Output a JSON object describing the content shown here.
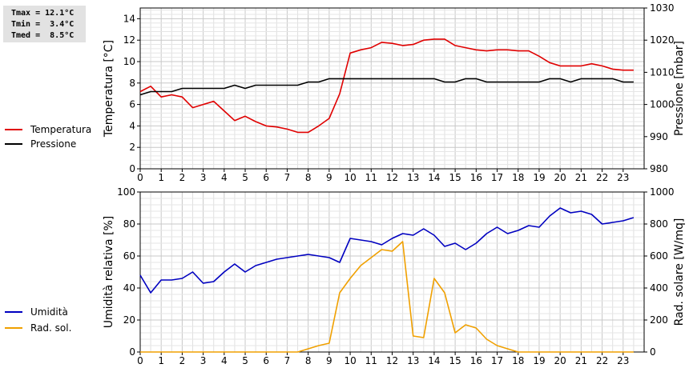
{
  "stats": {
    "tmax": "Tmax = 12.1°C",
    "tmin": "Tmin =  3.4°C",
    "tmed": "Tmed =  8.5°C"
  },
  "chart_data": [
    {
      "type": "line",
      "x_ticks": [
        "0",
        "1",
        "2",
        "3",
        "4",
        "5",
        "6",
        "7",
        "8",
        "9",
        "10",
        "11",
        "12",
        "13",
        "14",
        "15",
        "16",
        "17",
        "18",
        "19",
        "20",
        "21",
        "22",
        "23"
      ],
      "xlim": [
        0,
        24
      ],
      "ylabel_left": "Temperatura [°C]",
      "ylim_left": [
        0,
        15
      ],
      "yticks_left": [
        "0",
        "2",
        "4",
        "6",
        "8",
        "10",
        "12",
        "14"
      ],
      "ylabel_right": "Pressione [mbar]",
      "ylim_right": [
        980,
        1030
      ],
      "yticks_right": [
        "980",
        "990",
        "1000",
        "1010",
        "1020",
        "1030"
      ],
      "grid": true,
      "series": [
        {
          "name": "Temperatura",
          "axis": "left",
          "color": "#e00000",
          "x": [
            0,
            0.5,
            1,
            1.5,
            2,
            2.5,
            3,
            3.5,
            4,
            4.5,
            5,
            5.5,
            6,
            6.5,
            7,
            7.5,
            8,
            8.5,
            9,
            9.5,
            10,
            10.5,
            11,
            11.5,
            12,
            12.5,
            13,
            13.5,
            14,
            14.5,
            15,
            15.5,
            16,
            16.5,
            17,
            17.5,
            18,
            18.5,
            19,
            19.5,
            20,
            20.5,
            21,
            21.5,
            22,
            22.5,
            23,
            23.5
          ],
          "y": [
            7.2,
            7.7,
            6.7,
            6.9,
            6.7,
            5.7,
            6.0,
            6.3,
            5.4,
            4.5,
            4.9,
            4.4,
            4.0,
            3.9,
            3.7,
            3.4,
            3.4,
            4.0,
            4.7,
            7.0,
            10.8,
            11.1,
            11.3,
            11.8,
            11.7,
            11.5,
            11.6,
            12.0,
            12.1,
            12.1,
            11.5,
            11.3,
            11.1,
            11.0,
            11.1,
            11.1,
            11.0,
            11.0,
            10.5,
            9.9,
            9.6,
            9.6,
            9.6,
            9.8,
            9.6,
            9.3,
            9.2,
            9.2
          ]
        },
        {
          "name": "Pressione",
          "axis": "right",
          "color": "#000000",
          "x": [
            0,
            0.5,
            1,
            1.5,
            2,
            2.5,
            3,
            3.5,
            4,
            4.5,
            5,
            5.5,
            6,
            6.5,
            7,
            7.5,
            8,
            8.5,
            9,
            9.5,
            10,
            10.5,
            11,
            11.5,
            12,
            12.5,
            13,
            13.5,
            14,
            14.5,
            15,
            15.5,
            16,
            16.5,
            17,
            17.5,
            18,
            18.5,
            19,
            19.5,
            20,
            20.5,
            21,
            21.5,
            22,
            22.5,
            23,
            23.5
          ],
          "y": [
            1003,
            1004,
            1004,
            1004,
            1005,
            1005,
            1005,
            1005,
            1005,
            1006,
            1005,
            1006,
            1006,
            1006,
            1006,
            1006,
            1007,
            1007,
            1008,
            1008,
            1008,
            1008,
            1008,
            1008,
            1008,
            1008,
            1008,
            1008,
            1008,
            1007,
            1007,
            1008,
            1008,
            1007,
            1007,
            1007,
            1007,
            1007,
            1007,
            1008,
            1008,
            1007,
            1008,
            1008,
            1008,
            1008,
            1007,
            1007
          ]
        }
      ]
    },
    {
      "type": "line",
      "x_ticks": [
        "0",
        "1",
        "2",
        "3",
        "4",
        "5",
        "6",
        "7",
        "8",
        "9",
        "10",
        "11",
        "12",
        "13",
        "14",
        "15",
        "16",
        "17",
        "18",
        "19",
        "20",
        "21",
        "22",
        "23"
      ],
      "xlim": [
        0,
        24
      ],
      "ylabel_left": "Umidità relativa [%]",
      "ylim_left": [
        0,
        100
      ],
      "yticks_left": [
        "0",
        "20",
        "40",
        "60",
        "80",
        "100"
      ],
      "ylabel_right": "Rad. solare [W/mq]",
      "ylim_right": [
        0,
        1000
      ],
      "yticks_right": [
        "0",
        "200",
        "400",
        "600",
        "800",
        "1000"
      ],
      "grid": true,
      "series": [
        {
          "name": "Umidità",
          "axis": "left",
          "color": "#0000c0",
          "x": [
            0,
            0.5,
            1,
            1.5,
            2,
            2.5,
            3,
            3.5,
            4,
            4.5,
            5,
            5.5,
            6,
            6.5,
            7,
            7.5,
            8,
            8.5,
            9,
            9.5,
            10,
            10.5,
            11,
            11.5,
            12,
            12.5,
            13,
            13.5,
            14,
            14.5,
            15,
            15.5,
            16,
            16.5,
            17,
            17.5,
            18,
            18.5,
            19,
            19.5,
            20,
            20.5,
            21,
            21.5,
            22,
            22.5,
            23,
            23.5
          ],
          "y": [
            48,
            37,
            45,
            45,
            46,
            50,
            43,
            44,
            50,
            55,
            50,
            54,
            56,
            58,
            59,
            60,
            61,
            60,
            59,
            56,
            71,
            70,
            69,
            67,
            71,
            74,
            73,
            77,
            73,
            66,
            68,
            64,
            68,
            74,
            78,
            74,
            76,
            79,
            78,
            85,
            90,
            87,
            88,
            86,
            80,
            81,
            82,
            84
          ]
        },
        {
          "name": "Rad. sol.",
          "axis": "right",
          "color": "#f0a000",
          "x": [
            0,
            0.5,
            1,
            1.5,
            2,
            2.5,
            3,
            3.5,
            4,
            4.5,
            5,
            5.5,
            6,
            6.5,
            7,
            7.5,
            8,
            8.5,
            9,
            9.5,
            10,
            10.5,
            11,
            11.5,
            12,
            12.5,
            13,
            13.5,
            14,
            14.5,
            15,
            15.5,
            16,
            16.5,
            17,
            17.5,
            18,
            18.5,
            19,
            19.5,
            20,
            20.5,
            21,
            21.5,
            22,
            22.5,
            23,
            23.5
          ],
          "y": [
            0,
            0,
            0,
            0,
            0,
            0,
            0,
            0,
            0,
            0,
            0,
            0,
            0,
            0,
            0,
            0,
            20,
            40,
            55,
            370,
            460,
            540,
            590,
            640,
            630,
            690,
            100,
            90,
            460,
            370,
            120,
            170,
            150,
            80,
            40,
            20,
            0,
            0,
            0,
            0,
            0,
            0,
            0,
            0,
            0,
            0,
            0,
            0
          ]
        }
      ]
    }
  ]
}
